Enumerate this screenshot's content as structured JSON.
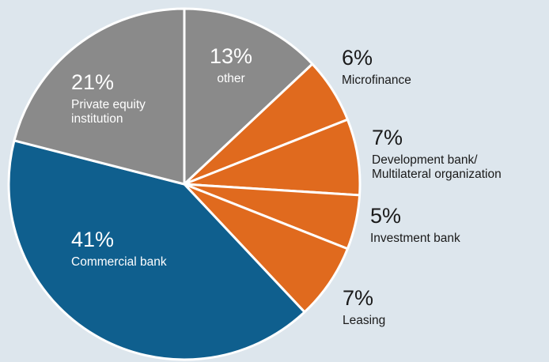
{
  "chart_data": {
    "type": "pie",
    "title": "",
    "start_angle_deg": 0,
    "direction": "clockwise",
    "slices": [
      {
        "pct_label": "13%",
        "label_lines": [
          "other"
        ],
        "value": 13,
        "color": "#8a8a8a",
        "label_position": "inside"
      },
      {
        "pct_label": "6%",
        "label_lines": [
          "Microfinance"
        ],
        "value": 6,
        "color": "#e06a1e",
        "label_position": "outside"
      },
      {
        "pct_label": "7%",
        "label_lines": [
          "Development bank/",
          "Multilateral organization"
        ],
        "value": 7,
        "color": "#e06a1e",
        "label_position": "outside"
      },
      {
        "pct_label": "5%",
        "label_lines": [
          "Investment bank"
        ],
        "value": 5,
        "color": "#e06a1e",
        "label_position": "outside"
      },
      {
        "pct_label": "7%",
        "label_lines": [
          "Leasing"
        ],
        "value": 7,
        "color": "#e06a1e",
        "label_position": "outside"
      },
      {
        "pct_label": "41%",
        "label_lines": [
          "Commercial bank"
        ],
        "value": 41,
        "color": "#0f5f8e",
        "label_position": "inside"
      },
      {
        "pct_label": "21%",
        "label_lines": [
          "Private equity",
          "institution"
        ],
        "value": 21,
        "color": "#8a8a8a",
        "label_position": "inside"
      }
    ]
  },
  "colors": {
    "background": "#dde6ed",
    "separator": "#ffffff"
  }
}
